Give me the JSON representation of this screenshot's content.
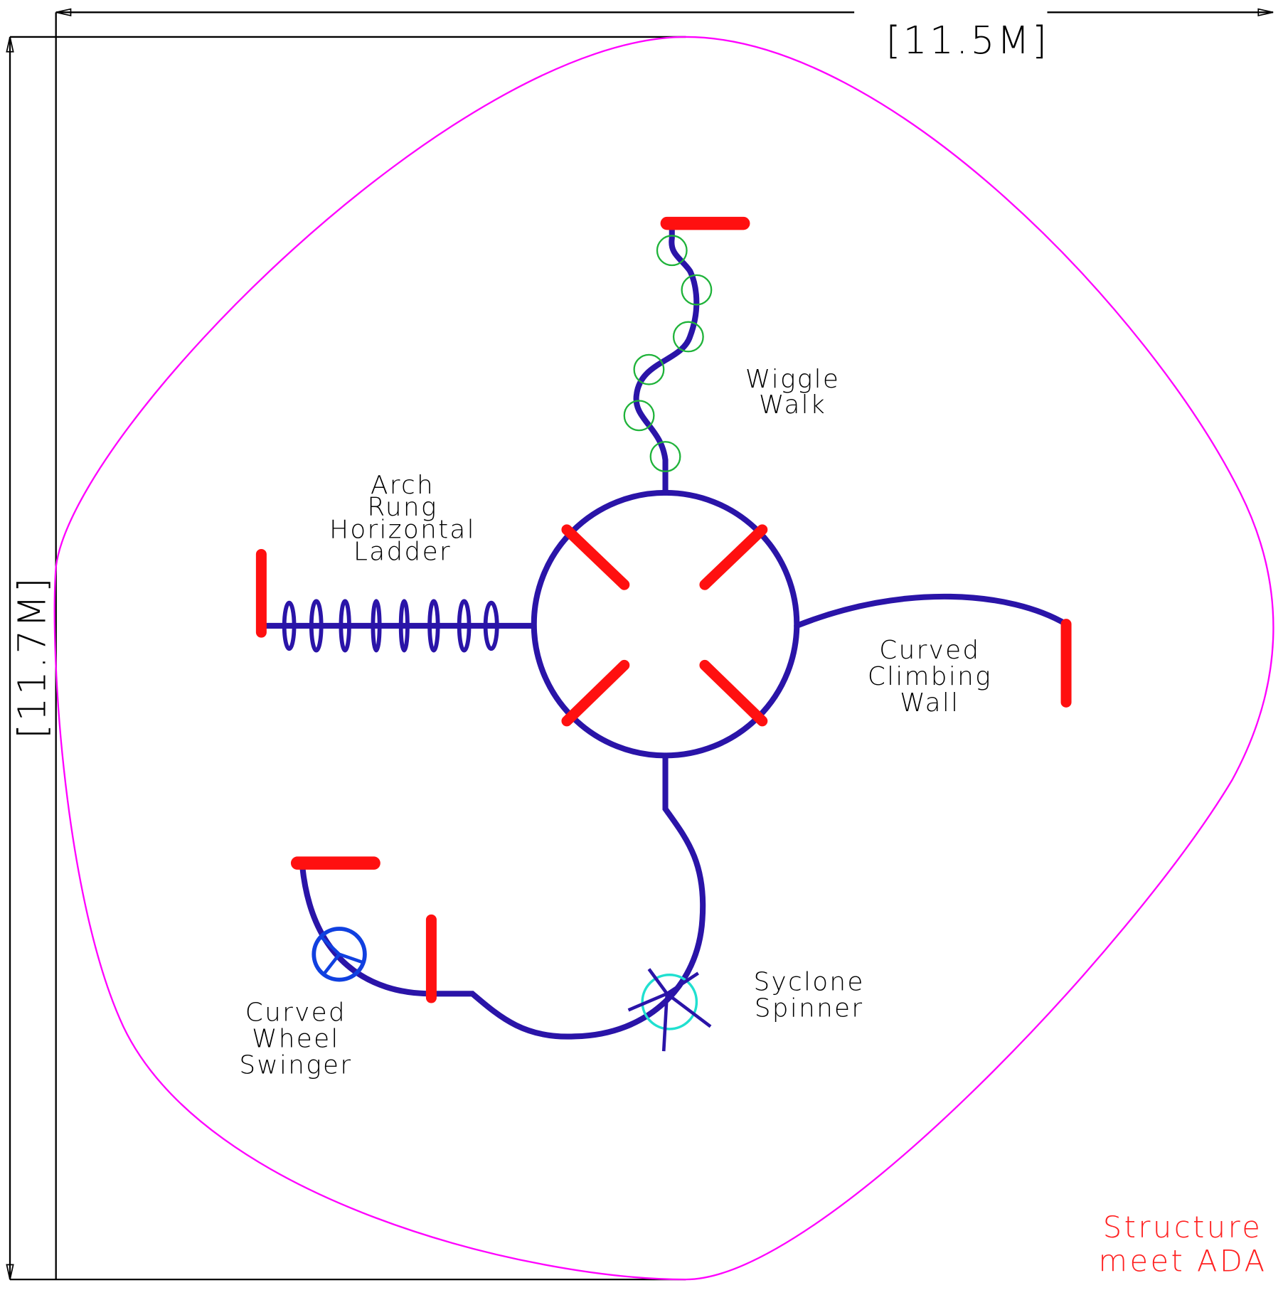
{
  "dimensions": {
    "width": "[11.5M]",
    "height": "[11.7M]"
  },
  "components": [
    {
      "label": [
        "Wiggle",
        "Walk"
      ]
    },
    {
      "label": [
        "Arch",
        "Rung",
        "Horizontal",
        "Ladder"
      ]
    },
    {
      "label": [
        "Curved",
        "Climbing",
        "Wall"
      ]
    },
    {
      "label": [
        "Syclone",
        "Spinner"
      ]
    },
    {
      "label": [
        "Curved",
        "Wheel",
        "Swinger"
      ]
    }
  ],
  "note": [
    "Structure",
    "meet ADA"
  ]
}
